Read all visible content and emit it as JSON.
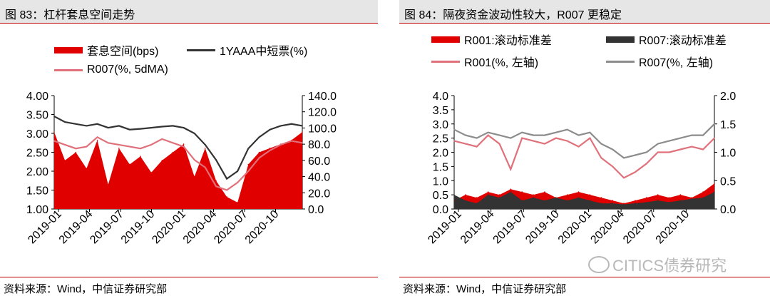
{
  "left": {
    "title": "图 83：杠杆套息空间走势",
    "source": "资料来源：Wind，中信证券研究部",
    "legend": [
      {
        "label": "套息空间(bps)",
        "color": "#e00000",
        "kind": "area"
      },
      {
        "label": "1YAAA中短票(%)",
        "color": "#333333",
        "kind": "line"
      },
      {
        "label": "R007(%, 5dMA)",
        "color": "#e0707a",
        "kind": "line"
      }
    ],
    "chart_data": {
      "type": "area",
      "x_ticks": [
        "2019-01",
        "2019-04",
        "2019-07",
        "2019-10",
        "2020-01",
        "2020-04",
        "2020-07",
        "2020-10"
      ],
      "y_left_ticks": [
        "1.00",
        "1.50",
        "2.00",
        "2.50",
        "3.00",
        "3.50",
        "4.00"
      ],
      "y_right_ticks": [
        "0.0",
        "20.0",
        "40.0",
        "60.0",
        "80.0",
        "100.0",
        "120.0",
        "140.0"
      ],
      "ylim_left": [
        1.0,
        4.0
      ],
      "ylim_right": [
        0,
        140
      ],
      "dates": [
        "2019-01",
        "2019-02",
        "2019-03",
        "2019-04",
        "2019-05",
        "2019-06",
        "2019-07",
        "2019-08",
        "2019-09",
        "2019-10",
        "2019-11",
        "2019-12",
        "2020-01",
        "2020-02",
        "2020-03",
        "2020-04",
        "2020-05",
        "2020-06",
        "2020-07",
        "2020-08",
        "2020-09",
        "2020-10",
        "2020-11",
        "2020-12"
      ],
      "series": [
        {
          "name": "套息空间(bps)",
          "axis": "right",
          "values": [
            95,
            60,
            70,
            50,
            85,
            30,
            75,
            55,
            65,
            45,
            60,
            70,
            80,
            40,
            75,
            35,
            15,
            8,
            55,
            70,
            75,
            80,
            85,
            95
          ]
        },
        {
          "name": "1YAAA中短票(%)",
          "axis": "left",
          "values": [
            3.45,
            3.3,
            3.25,
            3.2,
            3.25,
            3.15,
            3.2,
            3.1,
            3.12,
            3.15,
            3.18,
            3.2,
            3.15,
            3.0,
            2.7,
            2.3,
            1.8,
            2.0,
            2.6,
            2.9,
            3.1,
            3.2,
            3.25,
            3.2
          ]
        },
        {
          "name": "R007(%, 5dMA)",
          "axis": "left",
          "values": [
            2.8,
            2.7,
            2.6,
            2.65,
            2.9,
            2.75,
            2.7,
            2.65,
            2.6,
            2.7,
            2.85,
            2.75,
            2.65,
            2.3,
            2.1,
            1.6,
            1.5,
            1.7,
            2.0,
            2.35,
            2.55,
            2.7,
            2.8,
            2.75
          ]
        }
      ]
    }
  },
  "right": {
    "title": "图 84：隔夜资金波动性较大，R007 更稳定",
    "source": "资料来源：Wind，中信证券研究部",
    "watermark": "CITICS债券研究",
    "legend": [
      {
        "label": "R001:滚动标准差",
        "color": "#e00000",
        "kind": "area"
      },
      {
        "label": "R007:滚动标准差",
        "color": "#333333",
        "kind": "area"
      },
      {
        "label": "R001(%, 左轴)",
        "color": "#e0707a",
        "kind": "line"
      },
      {
        "label": "R007(%, 左轴)",
        "color": "#8c8c8c",
        "kind": "line"
      }
    ],
    "chart_data": {
      "type": "line",
      "x_ticks": [
        "2019-01",
        "2019-04",
        "2019-07",
        "2019-10",
        "2020-01",
        "2020-04",
        "2020-07",
        "2020-10"
      ],
      "y_left_ticks": [
        "0.0",
        "0.5",
        "1.0",
        "1.5",
        "2.0",
        "2.5",
        "3.0",
        "3.5",
        "4.0"
      ],
      "y_right_ticks": [
        "0.0",
        "0.5",
        "1.0",
        "1.5",
        "2.0"
      ],
      "ylim_left": [
        0,
        4.0
      ],
      "ylim_right": [
        0,
        2.0
      ],
      "dates": [
        "2019-01",
        "2019-02",
        "2019-03",
        "2019-04",
        "2019-05",
        "2019-06",
        "2019-07",
        "2019-08",
        "2019-09",
        "2019-10",
        "2019-11",
        "2019-12",
        "2020-01",
        "2020-02",
        "2020-03",
        "2020-04",
        "2020-05",
        "2020-06",
        "2020-07",
        "2020-08",
        "2020-09",
        "2020-10",
        "2020-11",
        "2020-12"
      ],
      "series": [
        {
          "name": "R001:滚动标准差",
          "axis": "right",
          "values": [
            0.15,
            0.25,
            0.2,
            0.3,
            0.25,
            0.35,
            0.3,
            0.25,
            0.3,
            0.2,
            0.25,
            0.3,
            0.25,
            0.2,
            0.15,
            0.1,
            0.15,
            0.2,
            0.25,
            0.2,
            0.25,
            0.2,
            0.3,
            0.45
          ]
        },
        {
          "name": "R007:滚动标准差",
          "axis": "right",
          "values": [
            0.25,
            0.15,
            0.1,
            0.25,
            0.2,
            0.3,
            0.15,
            0.2,
            0.15,
            0.2,
            0.15,
            0.2,
            0.15,
            0.1,
            0.1,
            0.08,
            0.1,
            0.12,
            0.15,
            0.12,
            0.15,
            0.18,
            0.2,
            0.3
          ]
        },
        {
          "name": "R001(%, 左轴)",
          "axis": "left",
          "values": [
            2.4,
            2.3,
            2.2,
            2.6,
            2.3,
            1.4,
            2.5,
            2.4,
            2.3,
            2.5,
            2.4,
            2.2,
            2.5,
            1.8,
            1.5,
            1.1,
            1.3,
            1.6,
            2.0,
            2.0,
            2.1,
            2.2,
            2.1,
            2.5
          ]
        },
        {
          "name": "R007(%, 左轴)",
          "axis": "left",
          "values": [
            2.8,
            2.6,
            2.5,
            2.7,
            2.6,
            2.5,
            2.7,
            2.6,
            2.6,
            2.7,
            2.8,
            2.6,
            2.7,
            2.3,
            2.1,
            1.8,
            1.9,
            2.0,
            2.3,
            2.4,
            2.5,
            2.6,
            2.6,
            3.0
          ]
        }
      ]
    }
  }
}
